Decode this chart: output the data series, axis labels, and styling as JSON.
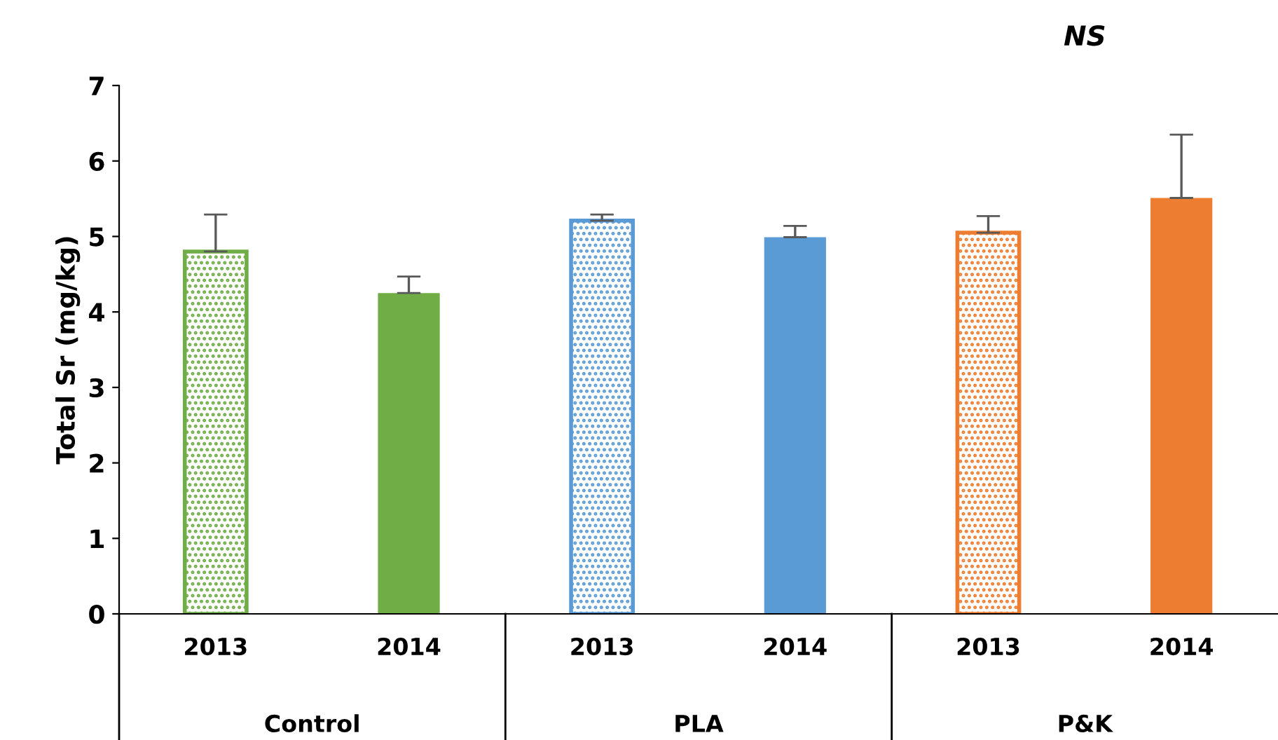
{
  "chart_data": {
    "type": "bar",
    "ylabel": "Total Sr (mg/kg)",
    "categories": [
      "2013",
      "2014",
      "2013",
      "2014",
      "2013",
      "2014"
    ],
    "series": [
      {
        "colors": [
          "#70ad47",
          null,
          "#5b9bd5",
          null,
          "#ed7d31",
          null
        ],
        "values": [
          4.8,
          null,
          5.21,
          null,
          5.05,
          null
        ],
        "errors": [
          [
            4.8,
            5.29
          ],
          null,
          [
            5.21,
            5.29
          ],
          null,
          [
            5.05,
            5.27
          ],
          null
        ]
      },
      {
        "colors": [
          null,
          "#70ad47",
          null,
          "#5b9bd5",
          null,
          "#ed7d31"
        ],
        "values": [
          null,
          4.25,
          null,
          4.99,
          null,
          5.51
        ],
        "errors": [
          null,
          [
            4.25,
            4.47
          ],
          null,
          [
            4.99,
            5.14
          ],
          null,
          [
            5.51,
            6.35
          ]
        ]
      }
    ],
    "annotations": [
      "Control",
      "PLA",
      "P&K",
      "NS"
    ],
    "ylim": [
      0,
      7
    ],
    "yticks": [
      0,
      1,
      2,
      3,
      4,
      5,
      6,
      7
    ],
    "grid": false,
    "legend": false
  }
}
